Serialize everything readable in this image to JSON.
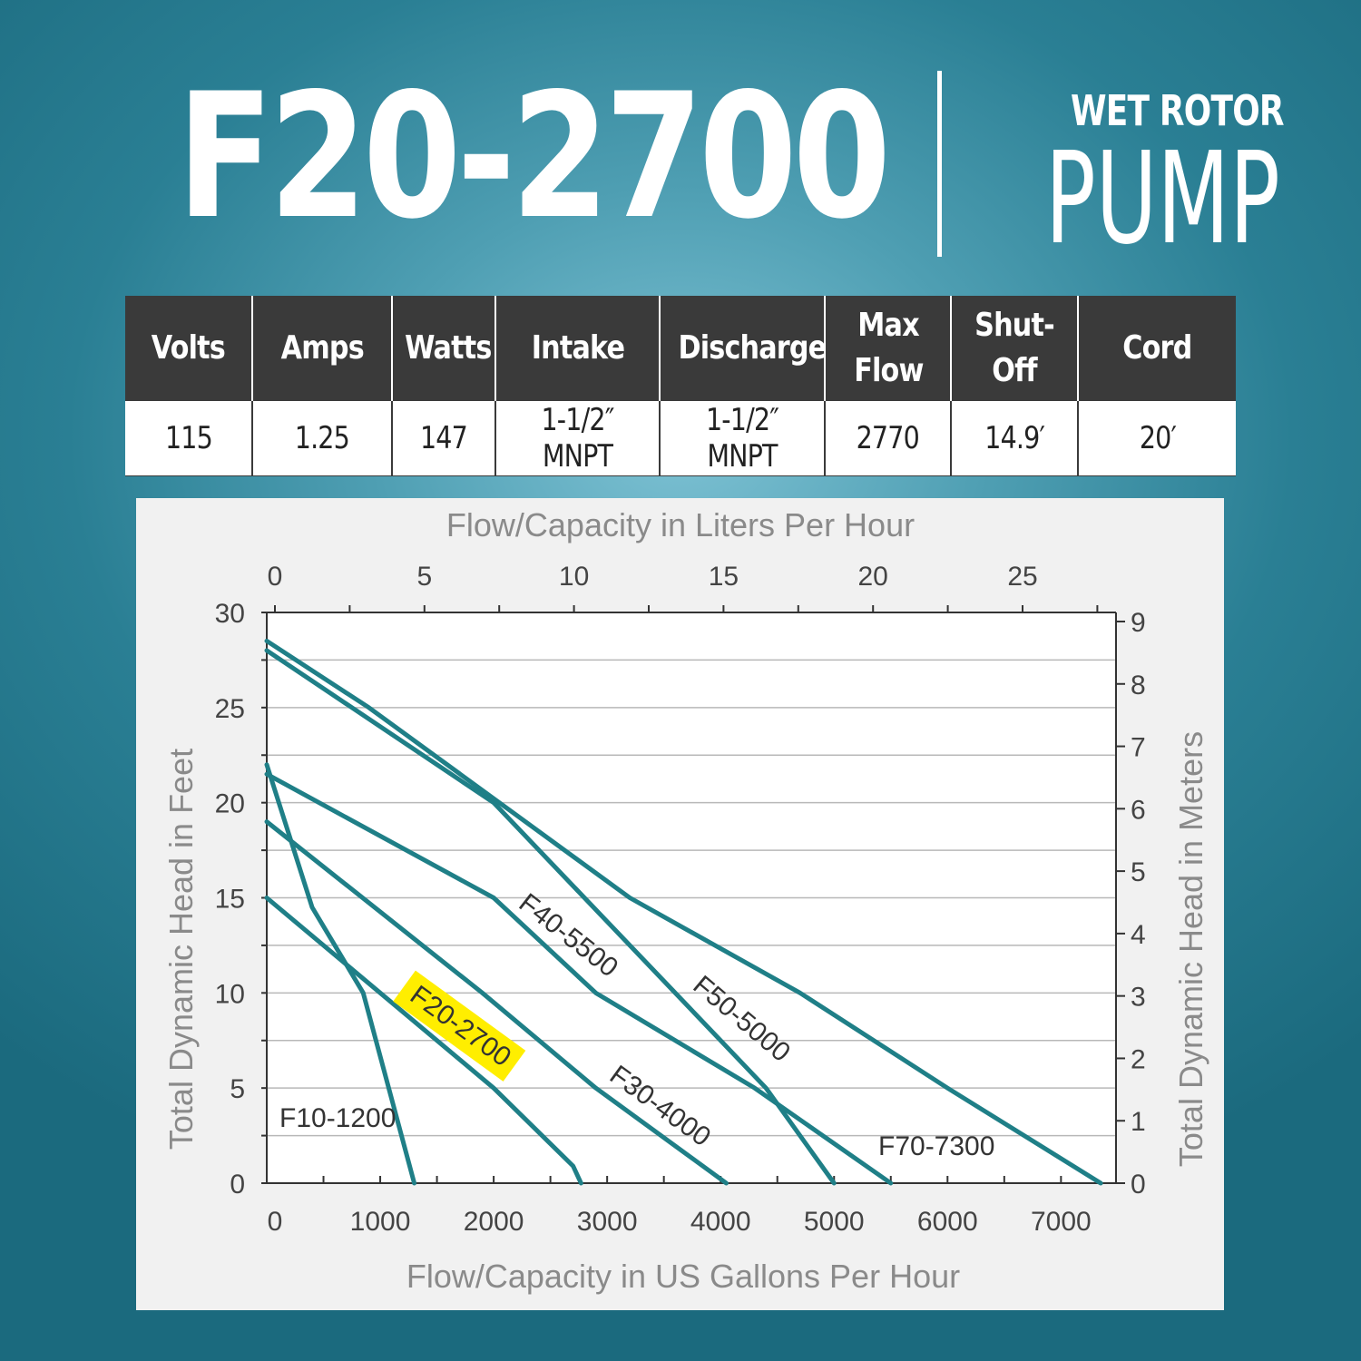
{
  "header": {
    "model": "F20-2700",
    "subtitle_top": "WET ROTOR",
    "subtitle_main": "PUMP"
  },
  "specs": {
    "headers": [
      "Volts",
      "Amps",
      "Watts",
      "Intake",
      "Discharge",
      "Max Flow",
      "Shut-Off",
      "Cord"
    ],
    "values": [
      "115",
      "1.25",
      "147",
      "1-1/2″ MNPT",
      "1-1/2″ MNPT",
      "2770",
      "14.9′",
      "20′"
    ]
  },
  "chart_data": {
    "type": "line",
    "title": "",
    "xlabel": "Flow/Capacity in US Gallons Per Hour",
    "x2label": "Flow/Capacity in Liters Per Hour",
    "ylabel": "Total Dynamic Head in Feet",
    "y2label": "Total Dynamic Head in Meters",
    "xlim": [
      0,
      7500
    ],
    "ylim": [
      0,
      30
    ],
    "x_ticks": [
      0,
      1000,
      2000,
      3000,
      4000,
      5000,
      6000,
      7000
    ],
    "y_ticks": [
      0,
      5,
      10,
      15,
      20,
      25,
      30
    ],
    "x2_ticks": [
      0,
      5,
      10,
      15,
      20,
      25
    ],
    "y2_ticks": [
      0,
      1,
      2,
      3,
      4,
      5,
      6,
      7,
      8,
      9
    ],
    "grid": true,
    "line_color": "#1f7f87",
    "highlight_color": "#ffee00",
    "series": [
      {
        "name": "F10-1200",
        "x": [
          0,
          400,
          850,
          1300
        ],
        "y": [
          22,
          14.5,
          10,
          0
        ]
      },
      {
        "name": "F20-2700",
        "x": [
          0,
          2000,
          2700,
          2770
        ],
        "y": [
          15,
          5,
          0.9,
          0
        ]
      },
      {
        "name": "F30-4000",
        "x": [
          0,
          1900,
          2900,
          4050
        ],
        "y": [
          19,
          10,
          5,
          0
        ]
      },
      {
        "name": "F40-5500",
        "x": [
          0,
          2000,
          2900,
          4300,
          5500
        ],
        "y": [
          21.5,
          15,
          10,
          5,
          0
        ]
      },
      {
        "name": "F50-5000",
        "x": [
          0,
          2000,
          2800,
          4400,
          5000
        ],
        "y": [
          28,
          20,
          15,
          5,
          0
        ]
      },
      {
        "name": "F70-7300",
        "x": [
          0,
          900,
          3200,
          4700,
          6000,
          7350
        ],
        "y": [
          28.5,
          25,
          15,
          10,
          5,
          0
        ]
      }
    ],
    "highlighted_series": "F20-2700"
  }
}
